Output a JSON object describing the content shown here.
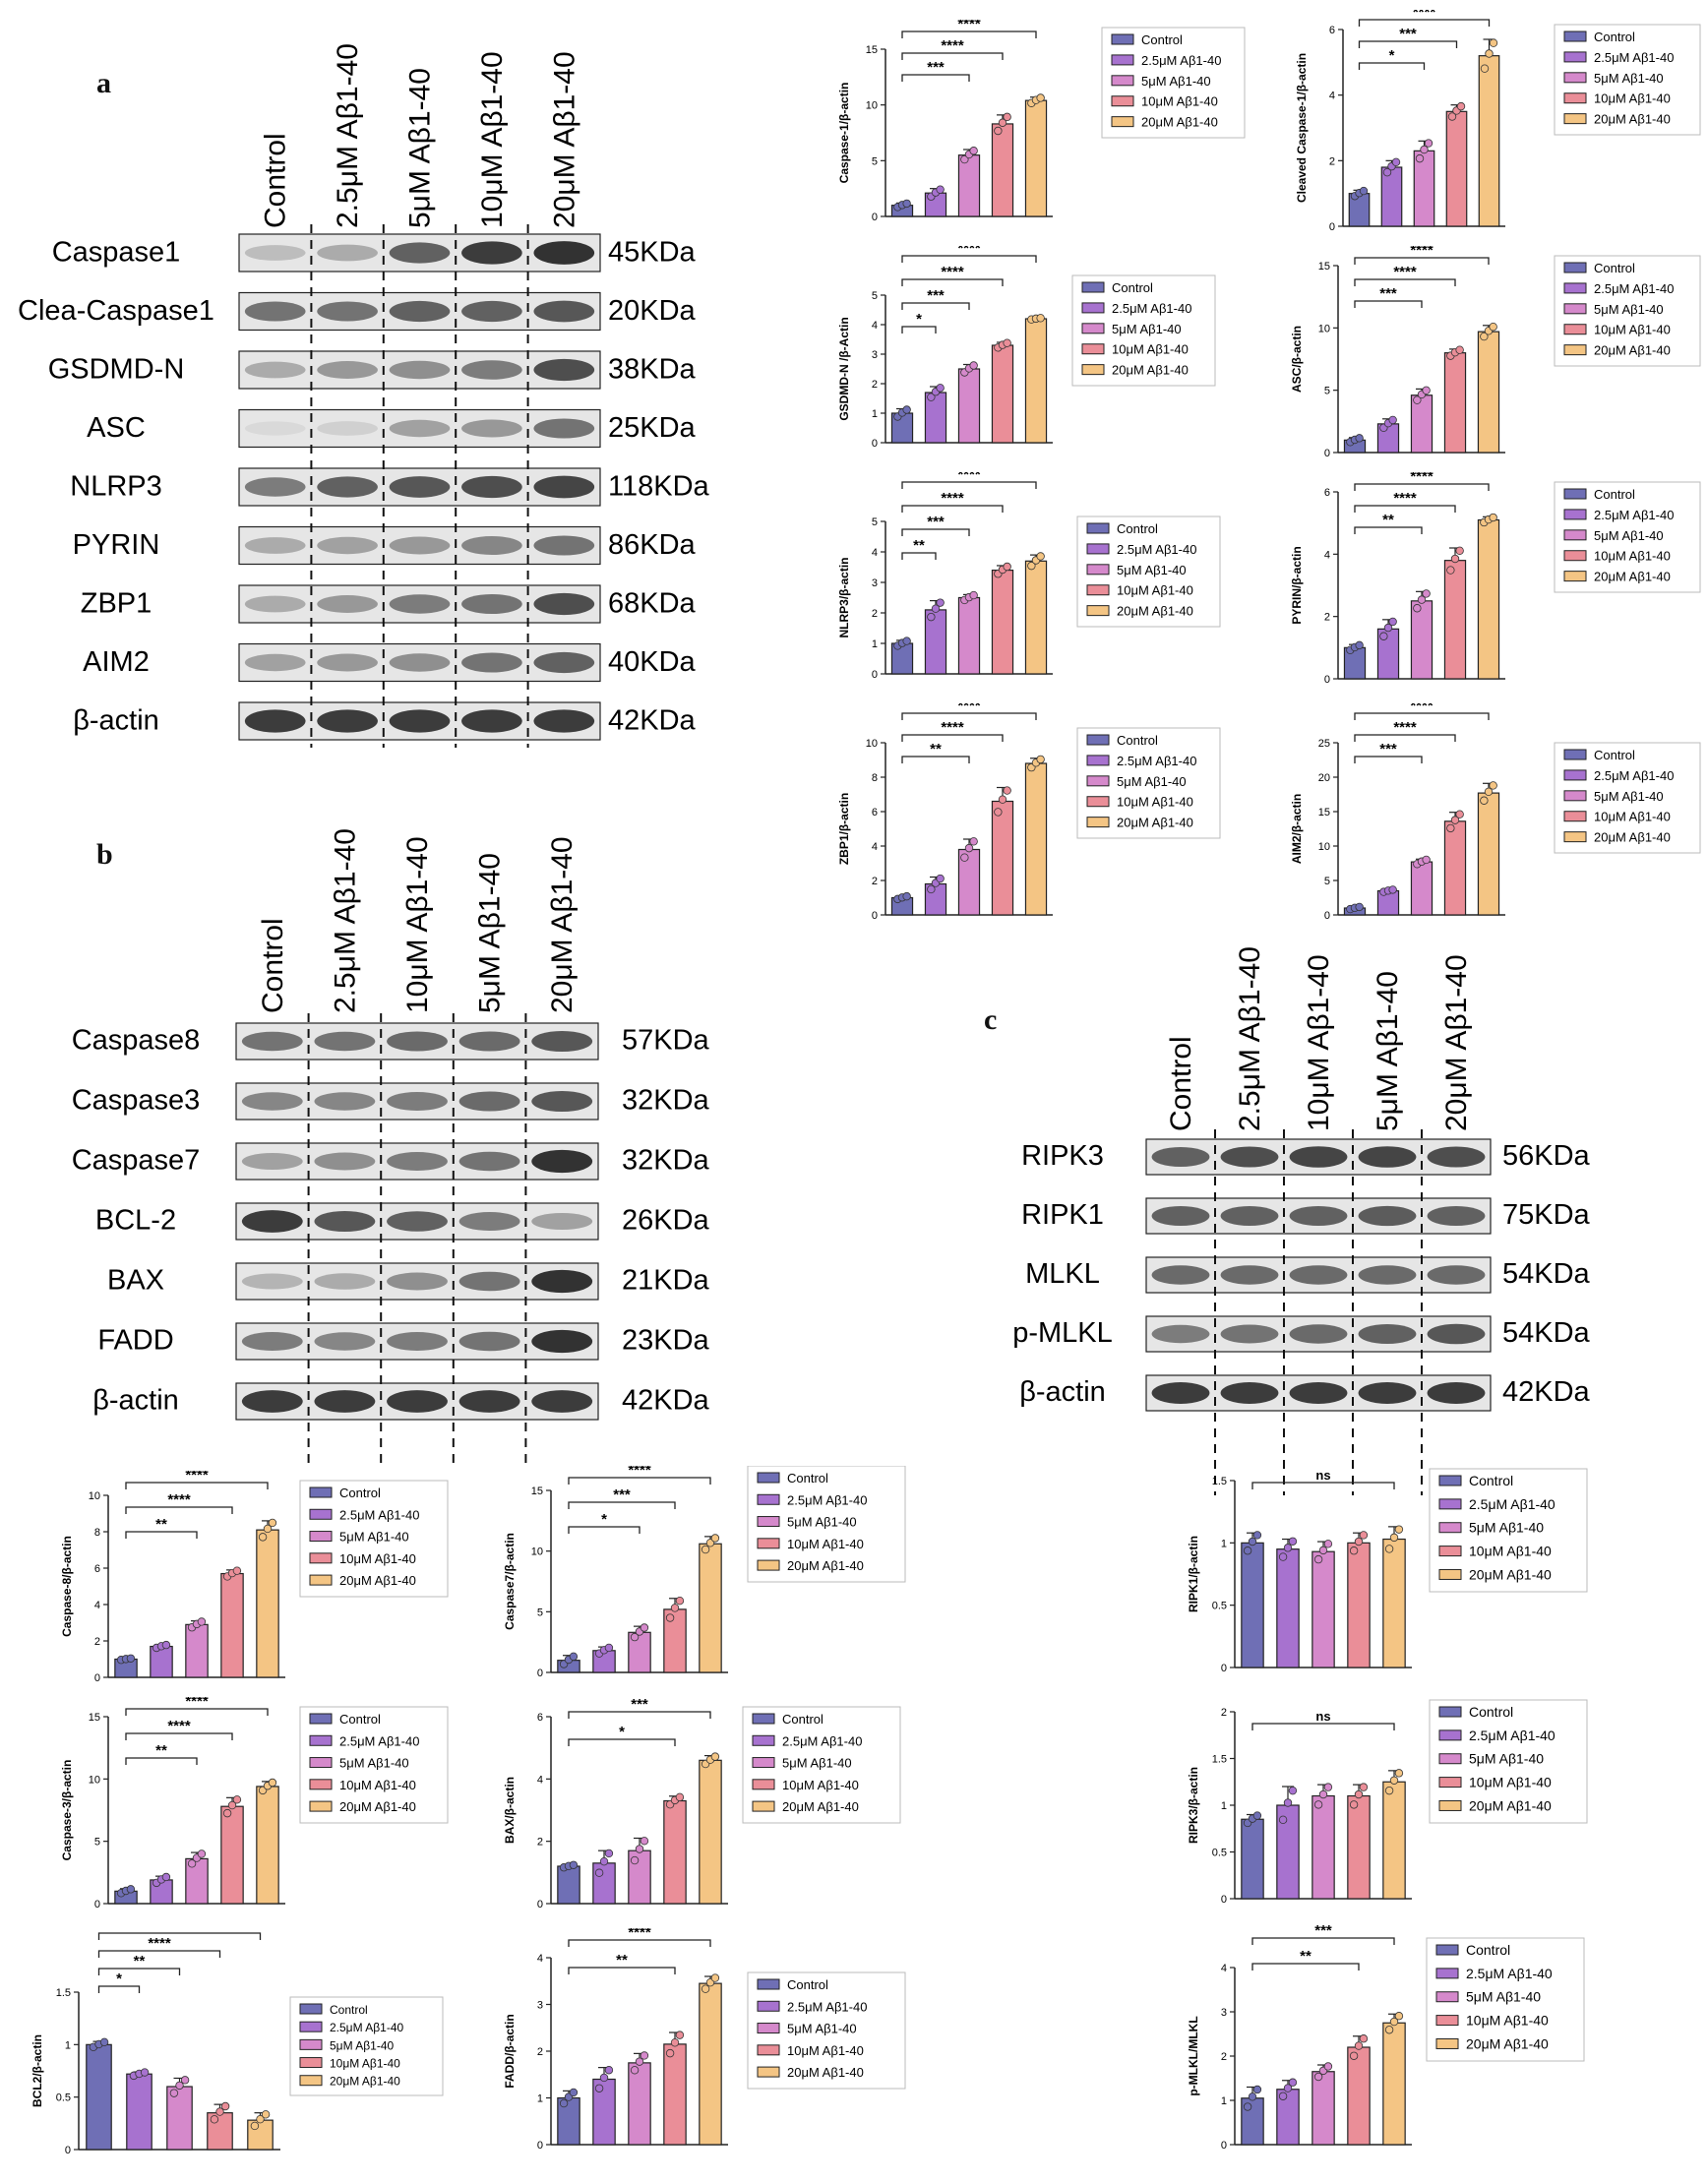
{
  "colors": {
    "control": "#6f6fb5",
    "c25": "#a772cf",
    "c5": "#d589cb",
    "c10": "#ea8e98",
    "c20": "#f4c584"
  },
  "panels": {
    "a": {
      "letter": "a",
      "lanes": [
        "Control",
        "2.5μM Aβ1-40",
        "5μM Aβ1-40",
        "10μM Aβ1-40",
        "20μM Aβ1-40"
      ],
      "proteins": [
        {
          "name": "Caspase1",
          "kda": "45KDa",
          "intens": [
            0.2,
            0.3,
            0.7,
            0.9,
            0.95
          ]
        },
        {
          "name": "Clea-Caspase1",
          "kda": "20KDa",
          "intens": [
            0.6,
            0.6,
            0.7,
            0.7,
            0.75
          ]
        },
        {
          "name": "GSDMD-N",
          "kda": "38KDa",
          "intens": [
            0.3,
            0.4,
            0.45,
            0.55,
            0.8
          ]
        },
        {
          "name": "ASC",
          "kda": "25KDa",
          "intens": [
            0.05,
            0.1,
            0.35,
            0.4,
            0.6
          ]
        },
        {
          "name": "NLRP3",
          "kda": "118KDa",
          "intens": [
            0.55,
            0.7,
            0.75,
            0.8,
            0.85
          ]
        },
        {
          "name": "PYRIN",
          "kda": "86KDa",
          "intens": [
            0.3,
            0.35,
            0.4,
            0.5,
            0.6
          ]
        },
        {
          "name": "ZBP1",
          "kda": "68KDa",
          "intens": [
            0.3,
            0.4,
            0.55,
            0.6,
            0.8
          ]
        },
        {
          "name": "AIM2",
          "kda": "40KDa",
          "intens": [
            0.35,
            0.4,
            0.45,
            0.6,
            0.7
          ]
        },
        {
          "name": "β-actin",
          "kda": "42KDa",
          "intens": [
            0.9,
            0.9,
            0.9,
            0.9,
            0.9
          ]
        }
      ]
    },
    "b": {
      "letter": "b",
      "lanes": [
        "Control",
        "2.5μM Aβ1-40",
        "10μM Aβ1-40",
        "5μM Aβ1-40",
        "20μM Aβ1-40"
      ],
      "proteins": [
        {
          "name": "Caspase8",
          "kda": "57KDa",
          "intens": [
            0.6,
            0.6,
            0.65,
            0.65,
            0.75
          ]
        },
        {
          "name": "Caspase3",
          "kda": "32KDa",
          "intens": [
            0.5,
            0.5,
            0.55,
            0.65,
            0.75
          ]
        },
        {
          "name": "Caspase7",
          "kda": "32KDa",
          "intens": [
            0.35,
            0.45,
            0.55,
            0.6,
            0.95
          ]
        },
        {
          "name": "BCL-2",
          "kda": "26KDa",
          "intens": [
            0.9,
            0.75,
            0.7,
            0.55,
            0.35
          ]
        },
        {
          "name": "BAX",
          "kda": "21KDa",
          "intens": [
            0.25,
            0.3,
            0.45,
            0.6,
            0.95
          ]
        },
        {
          "name": "FADD",
          "kda": "23KDa",
          "intens": [
            0.55,
            0.5,
            0.55,
            0.6,
            0.95
          ]
        },
        {
          "name": "β-actin",
          "kda": "42KDa",
          "intens": [
            0.9,
            0.9,
            0.9,
            0.9,
            0.9
          ]
        }
      ]
    },
    "c": {
      "letter": "c",
      "lanes": [
        "Control",
        "2.5μM Aβ1-40",
        "10μM Aβ1-40",
        "5μM Aβ1-40",
        "20μM Aβ1-40"
      ],
      "proteins": [
        {
          "name": "RIPK3",
          "kda": "56KDa",
          "intens": [
            0.7,
            0.8,
            0.85,
            0.85,
            0.8
          ]
        },
        {
          "name": "RIPK1",
          "kda": "75KDa",
          "intens": [
            0.7,
            0.7,
            0.7,
            0.72,
            0.7
          ]
        },
        {
          "name": "MLKL",
          "kda": "54KDa",
          "intens": [
            0.65,
            0.65,
            0.65,
            0.65,
            0.65
          ]
        },
        {
          "name": "p-MLKL",
          "kda": "54KDa",
          "intens": [
            0.55,
            0.6,
            0.65,
            0.7,
            0.75
          ]
        },
        {
          "name": "β-actin",
          "kda": "42KDa",
          "intens": [
            0.9,
            0.9,
            0.9,
            0.9,
            0.9
          ]
        }
      ]
    }
  },
  "legend_labels": [
    "Control",
    "2.5μM Aβ1-40",
    "5μM Aβ1-40",
    "10μM Aβ1-40",
    "20μM Aβ1-40"
  ],
  "chart_data": [
    {
      "id": "casp1",
      "type": "bar",
      "ylabel": "Caspase-1/β-actin",
      "categories": [
        "Control",
        "2.5μM Aβ1-40",
        "5μM Aβ1-40",
        "10μM Aβ1-40",
        "20μM Aβ1-40"
      ],
      "values": [
        1.0,
        2.1,
        5.5,
        8.3,
        10.4
      ],
      "errors": [
        0.2,
        0.4,
        0.5,
        0.8,
        0.3
      ],
      "ylim": [
        0,
        15
      ],
      "yticks": [
        0,
        5,
        10,
        15
      ],
      "sig": [
        {
          "to": 2,
          "label": "***"
        },
        {
          "to": 3,
          "label": "****"
        },
        {
          "to": 4,
          "label": "****"
        }
      ]
    },
    {
      "id": "clcasp1",
      "type": "bar",
      "ylabel": "Cleaved Caspase-1/β-actin",
      "categories": [
        "Control",
        "2.5μM Aβ1-40",
        "5μM Aβ1-40",
        "10μM Aβ1-40",
        "20μM Aβ1-40"
      ],
      "values": [
        1.0,
        1.8,
        2.3,
        3.5,
        5.2
      ],
      "errors": [
        0.1,
        0.2,
        0.3,
        0.2,
        0.5
      ],
      "ylim": [
        0,
        6
      ],
      "yticks": [
        0,
        2,
        4,
        6
      ],
      "sig": [
        {
          "to": 2,
          "label": "*"
        },
        {
          "to": 3,
          "label": "***"
        },
        {
          "to": 4,
          "label": "****"
        }
      ]
    },
    {
      "id": "gsdmd",
      "type": "bar",
      "ylabel": "GSDMD-N /β-Actin",
      "categories": [
        "Control",
        "2.5μM Aβ1-40",
        "5μM Aβ1-40",
        "10μM Aβ1-40",
        "20μM Aβ1-40"
      ],
      "values": [
        1.0,
        1.7,
        2.5,
        3.3,
        4.2
      ],
      "errors": [
        0.15,
        0.2,
        0.15,
        0.1,
        0.03
      ],
      "ylim": [
        0,
        5
      ],
      "yticks": [
        0,
        1,
        2,
        3,
        4,
        5
      ],
      "sig": [
        {
          "to": 1,
          "label": "*"
        },
        {
          "to": 2,
          "label": "***"
        },
        {
          "to": 3,
          "label": "****"
        },
        {
          "to": 4,
          "label": "****"
        }
      ]
    },
    {
      "id": "asc",
      "type": "bar",
      "ylabel": "ASC/β-actin",
      "categories": [
        "Control",
        "2.5μM Aβ1-40",
        "5μM Aβ1-40",
        "10μM Aβ1-40",
        "20μM Aβ1-40"
      ],
      "values": [
        1.0,
        2.3,
        4.6,
        8.0,
        9.7
      ],
      "errors": [
        0.2,
        0.4,
        0.5,
        0.3,
        0.5
      ],
      "ylim": [
        0,
        15
      ],
      "yticks": [
        0,
        5,
        10,
        15
      ],
      "sig": [
        {
          "to": 2,
          "label": "***"
        },
        {
          "to": 3,
          "label": "****"
        },
        {
          "to": 4,
          "label": "****"
        }
      ]
    },
    {
      "id": "nlrp3",
      "type": "bar",
      "ylabel": "NLRP3/β-actin",
      "categories": [
        "Control",
        "2.5μM Aβ1-40",
        "5μM Aβ1-40",
        "10μM Aβ1-40",
        "20μM Aβ1-40"
      ],
      "values": [
        1.0,
        2.1,
        2.5,
        3.4,
        3.7
      ],
      "errors": [
        0.1,
        0.3,
        0.1,
        0.15,
        0.2
      ],
      "ylim": [
        0,
        5
      ],
      "yticks": [
        0,
        1,
        2,
        3,
        4,
        5
      ],
      "sig": [
        {
          "to": 1,
          "label": "**"
        },
        {
          "to": 2,
          "label": "***"
        },
        {
          "to": 3,
          "label": "****"
        },
        {
          "to": 4,
          "label": "****"
        }
      ]
    },
    {
      "id": "pyrin",
      "type": "bar",
      "ylabel": "PYRIN/β-actin",
      "categories": [
        "Control",
        "2.5μM Aβ1-40",
        "5μM Aβ1-40",
        "10μM Aβ1-40",
        "20μM Aβ1-40"
      ],
      "values": [
        1.0,
        1.6,
        2.5,
        3.8,
        5.1
      ],
      "errors": [
        0.1,
        0.3,
        0.3,
        0.4,
        0.1
      ],
      "ylim": [
        0,
        6
      ],
      "yticks": [
        0,
        2,
        4,
        6
      ],
      "sig": [
        {
          "to": 2,
          "label": "**"
        },
        {
          "to": 3,
          "label": "****"
        },
        {
          "to": 4,
          "label": "****"
        }
      ]
    },
    {
      "id": "zbp1",
      "type": "bar",
      "ylabel": "ZBP1/β-actin",
      "categories": [
        "Control",
        "2.5μM Aβ1-40",
        "5μM Aβ1-40",
        "10μM Aβ1-40",
        "20μM Aβ1-40"
      ],
      "values": [
        1.0,
        1.8,
        3.8,
        6.6,
        8.8
      ],
      "errors": [
        0.1,
        0.4,
        0.6,
        0.8,
        0.3
      ],
      "ylim": [
        0,
        10
      ],
      "yticks": [
        0,
        2,
        4,
        6,
        8,
        10
      ],
      "sig": [
        {
          "to": 2,
          "label": "**"
        },
        {
          "to": 3,
          "label": "****"
        },
        {
          "to": 4,
          "label": "****"
        }
      ]
    },
    {
      "id": "aim2",
      "type": "bar",
      "ylabel": "AIM2/β-actin",
      "categories": [
        "Control",
        "2.5μM Aβ1-40",
        "5μM Aβ1-40",
        "10μM Aβ1-40",
        "20μM Aβ1-40"
      ],
      "values": [
        1.0,
        3.5,
        7.7,
        13.6,
        17.7
      ],
      "errors": [
        0.2,
        0.2,
        0.4,
        1.3,
        1.4
      ],
      "ylim": [
        0,
        25
      ],
      "yticks": [
        0,
        5,
        10,
        15,
        20,
        25
      ],
      "sig": [
        {
          "to": 2,
          "label": "***"
        },
        {
          "to": 3,
          "label": "****"
        },
        {
          "to": 4,
          "label": "****"
        }
      ]
    },
    {
      "id": "casp8",
      "type": "bar",
      "ylabel": "Caspase-8/β-actin",
      "categories": [
        "Control",
        "2.5μM Aβ1-40",
        "5μM Aβ1-40",
        "10μM Aβ1-40",
        "20μM Aβ1-40"
      ],
      "values": [
        1.0,
        1.7,
        2.9,
        5.7,
        8.1
      ],
      "errors": [
        0.05,
        0.1,
        0.2,
        0.2,
        0.5
      ],
      "ylim": [
        0,
        10
      ],
      "yticks": [
        0,
        2,
        4,
        6,
        8,
        10
      ],
      "sig": [
        {
          "to": 2,
          "label": "**"
        },
        {
          "to": 3,
          "label": "****"
        },
        {
          "to": 4,
          "label": "****"
        }
      ]
    },
    {
      "id": "casp7",
      "type": "bar",
      "ylabel": "Caspase7/β-actin",
      "categories": [
        "Control",
        "2.5μM Aβ1-40",
        "5μM Aβ1-40",
        "10μM Aβ1-40",
        "20μM Aβ1-40"
      ],
      "values": [
        1.0,
        1.8,
        3.3,
        5.2,
        10.6
      ],
      "errors": [
        0.4,
        0.3,
        0.5,
        0.9,
        0.6
      ],
      "ylim": [
        0,
        15
      ],
      "yticks": [
        0,
        5,
        10,
        15
      ],
      "sig": [
        {
          "to": 2,
          "label": "*"
        },
        {
          "to": 3,
          "label": "***"
        },
        {
          "to": 4,
          "label": "****"
        }
      ]
    },
    {
      "id": "casp3",
      "type": "bar",
      "ylabel": "Caspase-3/β-actin",
      "categories": [
        "Control",
        "2.5μM Aβ1-40",
        "5μM Aβ1-40",
        "10μM Aβ1-40",
        "20μM Aβ1-40"
      ],
      "values": [
        1.0,
        1.9,
        3.6,
        7.8,
        9.4
      ],
      "errors": [
        0.2,
        0.3,
        0.5,
        0.7,
        0.4
      ],
      "ylim": [
        0,
        15
      ],
      "yticks": [
        0,
        5,
        10,
        15
      ],
      "sig": [
        {
          "to": 2,
          "label": "**"
        },
        {
          "to": 3,
          "label": "****"
        },
        {
          "to": 4,
          "label": "****"
        }
      ]
    },
    {
      "id": "bax",
      "type": "bar",
      "ylabel": "BAX/β-actin",
      "categories": [
        "Control",
        "2.5μM Aβ1-40",
        "5μM Aβ1-40",
        "10μM Aβ1-40",
        "20μM Aβ1-40"
      ],
      "values": [
        1.2,
        1.3,
        1.7,
        3.3,
        4.6
      ],
      "errors": [
        0.05,
        0.4,
        0.4,
        0.15,
        0.15
      ],
      "ylim": [
        0,
        6
      ],
      "yticks": [
        0,
        2,
        4,
        6
      ],
      "sig": [
        {
          "to": 3,
          "label": "*"
        },
        {
          "to": 4,
          "label": "***"
        }
      ]
    },
    {
      "id": "bcl2",
      "type": "bar",
      "ylabel": "BCL2/β-actin",
      "categories": [
        "Control",
        "2.5μM Aβ1-40",
        "5μM Aβ1-40",
        "10μM Aβ1-40",
        "20μM Aβ1-40"
      ],
      "values": [
        1.0,
        0.72,
        0.6,
        0.35,
        0.28
      ],
      "errors": [
        0.03,
        0.02,
        0.08,
        0.08,
        0.07
      ],
      "ylim": [
        0,
        1.5
      ],
      "yticks": [
        0.0,
        0.5,
        1.0,
        1.5
      ],
      "sig": [
        {
          "to": 1,
          "label": "*"
        },
        {
          "to": 2,
          "label": "**"
        },
        {
          "to": 3,
          "label": "****"
        },
        {
          "to": 4,
          "label": "****"
        }
      ]
    },
    {
      "id": "fadd",
      "type": "bar",
      "ylabel": "FADD/β-actin",
      "categories": [
        "Control",
        "2.5μM Aβ1-40",
        "5μM Aβ1-40",
        "10μM Aβ1-40",
        "20μM Aβ1-40"
      ],
      "values": [
        1.0,
        1.4,
        1.75,
        2.15,
        3.45
      ],
      "errors": [
        0.15,
        0.25,
        0.2,
        0.25,
        0.15
      ],
      "ylim": [
        0,
        4
      ],
      "yticks": [
        0,
        1,
        2,
        3,
        4
      ],
      "sig": [
        {
          "to": 3,
          "label": "**"
        },
        {
          "to": 4,
          "label": "****"
        }
      ]
    },
    {
      "id": "ripk1",
      "type": "bar",
      "ylabel": "RIPK1/β-actin",
      "categories": [
        "Control",
        "2.5μM Aβ1-40",
        "5μM Aβ1-40",
        "10μM Aβ1-40",
        "20μM Aβ1-40"
      ],
      "values": [
        1.0,
        0.95,
        0.93,
        1.0,
        1.03
      ],
      "errors": [
        0.08,
        0.08,
        0.08,
        0.08,
        0.1
      ],
      "ylim": [
        0,
        1.5
      ],
      "yticks": [
        0.0,
        0.5,
        1.0,
        1.5
      ],
      "sig": [
        {
          "to": 4,
          "label": "ns"
        }
      ]
    },
    {
      "id": "ripk3",
      "type": "bar",
      "ylabel": "RIPK3/β-actin",
      "categories": [
        "Control",
        "2.5μM Aβ1-40",
        "5μM Aβ1-40",
        "10μM Aβ1-40",
        "20μM Aβ1-40"
      ],
      "values": [
        0.85,
        1.0,
        1.1,
        1.1,
        1.25
      ],
      "errors": [
        0.05,
        0.2,
        0.12,
        0.12,
        0.12
      ],
      "ylim": [
        0,
        2.0
      ],
      "yticks": [
        0.0,
        0.5,
        1.0,
        1.5,
        2.0
      ],
      "sig": [
        {
          "to": 4,
          "label": "ns"
        }
      ]
    },
    {
      "id": "pmlkl",
      "type": "bar",
      "ylabel": "p-MLKL/MLKL",
      "categories": [
        "Control",
        "2.5μM Aβ1-40",
        "5μM Aβ1-40",
        "10μM Aβ1-40",
        "20μM Aβ1-40"
      ],
      "values": [
        1.05,
        1.25,
        1.65,
        2.2,
        2.75
      ],
      "errors": [
        0.25,
        0.2,
        0.15,
        0.25,
        0.2
      ],
      "ylim": [
        0,
        4
      ],
      "yticks": [
        0,
        1,
        2,
        3,
        4
      ],
      "sig": [
        {
          "to": 3,
          "label": "**"
        },
        {
          "to": 4,
          "label": "***"
        }
      ]
    }
  ]
}
